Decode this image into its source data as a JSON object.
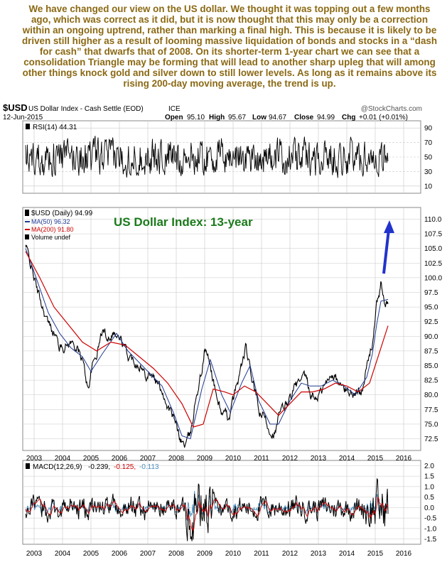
{
  "commentary": "We have changed our view on the US dollar. We thought it was topping out a few months ago, which was correct as it did, but it is now thought that this may only be a correction within an ongoing uptrend, rather than marking a final high. This is because it is likely to be driven still higher as a result of looming massive liquidation of bonds and stocks in a “dash for cash” that dwarfs that of 2008. On its shorter-term 1-year chart we can see that a consolidation Triangle may be forming that will lead to another sharp upleg that will among other things knock gold and silver down to still lower levels. As long as it remains above its rising 200-day moving average, the trend is up.",
  "header": {
    "symbol": "$USD",
    "name": "US Dollar Index - Cash Settle (EOD)",
    "exchange": "ICE",
    "credit": "@StockCharts.com",
    "date": "12-Jun-2015",
    "ohlc": {
      "open_label": "Open",
      "open": "95.10",
      "high_label": "High",
      "high": "95.67",
      "low_label": "Low",
      "low": "94.67",
      "close_label": "Close",
      "close": "94.99",
      "chg_label": "Chg",
      "chg": "+0.01 (+0.01%)"
    }
  },
  "colors": {
    "commentary": "#8b6914",
    "price": "#000000",
    "ma50": "#1f3a93",
    "ma200": "#cc0000",
    "macd": "#000000",
    "signal": "#cc0000",
    "histogram": "#4a90c0",
    "arrow": "#2233cc",
    "title": "#1a7a1a",
    "grid": "#c8c8c8"
  },
  "chart_data": [
    {
      "type": "line",
      "panel": "rsi",
      "legend": "RSI(14) 44.31",
      "ylim": [
        0,
        100
      ],
      "y_ticks": [
        "90",
        "70",
        "50",
        "30",
        "10"
      ],
      "reference_lines": [
        70,
        50,
        30
      ],
      "grid": true
    },
    {
      "type": "line",
      "panel": "price",
      "title": "US Dollar Index: 13-year",
      "legend": [
        {
          "label": "$USD (Daily) 94.99",
          "color": "#000000"
        },
        {
          "label": "MA(50) 96.32",
          "color": "#1f3a93"
        },
        {
          "label": "MA(200) 91.80",
          "color": "#cc0000"
        },
        {
          "label": "Volume undef",
          "color": "#000000"
        }
      ],
      "ylim": [
        70.5,
        112
      ],
      "y_ticks": [
        "110.0",
        "107.5",
        "105.0",
        "102.5",
        "100.0",
        "97.5",
        "95.0",
        "92.5",
        "90.0",
        "87.5",
        "85.0",
        "82.5",
        "80.0",
        "77.5",
        "75.0",
        "72.5"
      ],
      "x_ticks": [
        "2003",
        "2004",
        "2005",
        "2006",
        "2007",
        "2008",
        "2009",
        "2010",
        "2011",
        "2012",
        "2013",
        "2014",
        "2015",
        "2016"
      ],
      "xlim": [
        2002.6,
        2016.6
      ],
      "grid": true,
      "series": [
        {
          "name": "$USD (Daily)",
          "x": [
            2002.7,
            2002.9,
            2003.1,
            2003.3,
            2003.5,
            2003.7,
            2003.9,
            2004.1,
            2004.3,
            2004.5,
            2004.7,
            2004.9,
            2005.0,
            2005.2,
            2005.4,
            2005.6,
            2005.8,
            2005.9,
            2006.1,
            2006.3,
            2006.5,
            2006.7,
            2006.9,
            2007.1,
            2007.3,
            2007.5,
            2007.7,
            2007.9,
            2008.1,
            2008.2,
            2008.3,
            2008.5,
            2008.7,
            2008.9,
            2009.0,
            2009.2,
            2009.4,
            2009.6,
            2009.8,
            2009.9,
            2010.1,
            2010.3,
            2010.45,
            2010.6,
            2010.8,
            2010.9,
            2011.1,
            2011.3,
            2011.5,
            2011.6,
            2011.8,
            2012.0,
            2012.2,
            2012.4,
            2012.55,
            2012.7,
            2012.9,
            2013.1,
            2013.3,
            2013.5,
            2013.7,
            2013.9,
            2014.1,
            2014.3,
            2014.5,
            2014.7,
            2014.9,
            2015.05,
            2015.2,
            2015.3,
            2015.45
          ],
          "values": [
            105.5,
            102,
            98,
            95,
            92,
            91,
            88,
            88.5,
            89,
            88,
            86,
            81,
            84,
            87,
            91,
            90,
            91,
            90,
            89,
            86.5,
            86,
            85.5,
            83.5,
            84,
            82,
            81,
            78,
            76,
            73,
            72,
            71.5,
            73,
            80,
            84,
            88,
            85,
            80,
            77,
            76,
            77,
            81,
            85,
            88,
            84,
            80,
            77,
            76,
            74,
            73.5,
            76,
            78,
            79.5,
            81.5,
            82,
            83,
            80,
            79.5,
            80.5,
            82,
            84,
            82,
            81,
            80.5,
            80,
            81,
            84.5,
            89,
            95,
            99,
            96,
            95
          ]
        },
        {
          "name": "MA(50)",
          "x": [
            2002.7,
            2003.0,
            2003.5,
            2003.9,
            2004.3,
            2004.7,
            2005.0,
            2005.4,
            2005.9,
            2006.3,
            2006.7,
            2007.1,
            2007.5,
            2007.9,
            2008.2,
            2008.5,
            2008.9,
            2009.2,
            2009.6,
            2009.9,
            2010.3,
            2010.6,
            2010.9,
            2011.3,
            2011.6,
            2012.0,
            2012.4,
            2012.7,
            2013.1,
            2013.5,
            2013.9,
            2014.3,
            2014.7,
            2014.9,
            2015.05,
            2015.2,
            2015.45
          ],
          "values": [
            105,
            101,
            94,
            90.5,
            88,
            86.5,
            84,
            87,
            90.5,
            87.5,
            85.5,
            83.5,
            81.5,
            77,
            73,
            72.5,
            81,
            86,
            80,
            77,
            82,
            85,
            79,
            75,
            75,
            79,
            82,
            81.5,
            81.5,
            82.5,
            81.5,
            80,
            83,
            87,
            92,
            96,
            96.3
          ]
        },
        {
          "name": "MA(200)",
          "x": [
            2002.7,
            2003.2,
            2003.7,
            2004.2,
            2004.7,
            2005.2,
            2005.7,
            2006.2,
            2006.7,
            2007.2,
            2007.7,
            2008.2,
            2008.6,
            2008.95,
            2009.3,
            2009.7,
            2010.0,
            2010.4,
            2010.8,
            2011.2,
            2011.6,
            2012.0,
            2012.4,
            2012.8,
            2013.2,
            2013.6,
            2014.0,
            2014.4,
            2014.8,
            2015.1,
            2015.45
          ],
          "values": [
            104.5,
            100,
            95,
            92,
            89,
            87.5,
            89,
            88.5,
            86.5,
            84.5,
            82,
            78.5,
            74.5,
            75,
            81,
            80.5,
            80,
            81.5,
            80.5,
            78.5,
            76.5,
            78.5,
            80.5,
            80.5,
            81,
            82,
            81.5,
            80.5,
            82,
            86.5,
            91.8
          ]
        }
      ]
    },
    {
      "type": "line",
      "panel": "macd",
      "legend": {
        "name": "MACD(12,26,9)",
        "macd": "-0.239,",
        "signal": "-0.125,",
        "histogram": "-0.113"
      },
      "ylim": [
        -1.75,
        2.25
      ],
      "y_ticks": [
        "2.0",
        "1.5",
        "1.0",
        "0.5",
        "0.0",
        "-0.5",
        "-1.0",
        "-1.5"
      ],
      "x_ticks": [
        "2003",
        "2004",
        "2005",
        "2006",
        "2007",
        "2008",
        "2009",
        "2010",
        "2011",
        "2012",
        "2013",
        "2014",
        "2015",
        "2016"
      ],
      "grid": true
    }
  ]
}
